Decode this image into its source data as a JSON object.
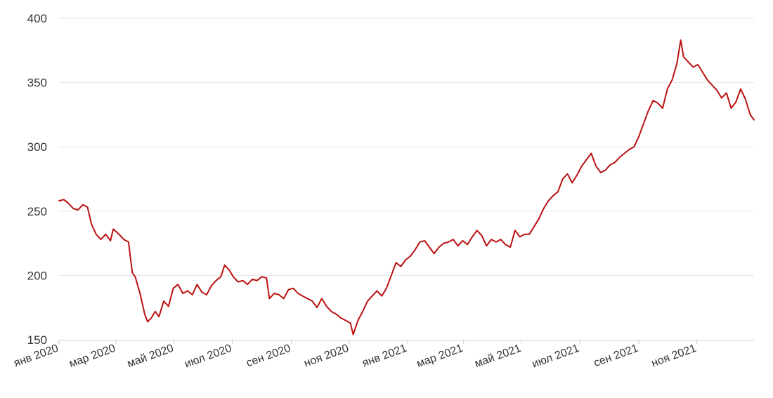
{
  "chart_data": {
    "type": "line",
    "title": "",
    "xlabel": "",
    "ylabel": "",
    "x_range": [
      "2020-01-01",
      "2021-12-31"
    ],
    "ylim": [
      150,
      400
    ],
    "yticks": [
      150,
      200,
      250,
      300,
      350,
      400
    ],
    "xticks": [
      {
        "date": "2020-01-01",
        "label": "янв 2020"
      },
      {
        "date": "2020-03-01",
        "label": "мар 2020"
      },
      {
        "date": "2020-05-01",
        "label": "май 2020"
      },
      {
        "date": "2020-07-01",
        "label": "июл 2020"
      },
      {
        "date": "2020-09-01",
        "label": "сен 2020"
      },
      {
        "date": "2020-11-01",
        "label": "ноя 2020"
      },
      {
        "date": "2021-01-01",
        "label": "янв 2021"
      },
      {
        "date": "2021-03-01",
        "label": "мар 2021"
      },
      {
        "date": "2021-05-01",
        "label": "май 2021"
      },
      {
        "date": "2021-07-01",
        "label": "июл 2021"
      },
      {
        "date": "2021-09-01",
        "label": "сен 2021"
      },
      {
        "date": "2021-11-01",
        "label": "ноя 2021"
      }
    ],
    "grid": "horizontal",
    "line_color": "#bb1111",
    "grid_color": "#e6e6e6",
    "series": [
      {
        "points": [
          [
            "2020-01-01",
            258
          ],
          [
            "2020-01-06",
            259
          ],
          [
            "2020-01-11",
            256
          ],
          [
            "2020-01-16",
            252
          ],
          [
            "2020-01-21",
            251
          ],
          [
            "2020-01-26",
            255
          ],
          [
            "2020-01-31",
            253
          ],
          [
            "2020-02-04",
            240
          ],
          [
            "2020-02-09",
            232
          ],
          [
            "2020-02-14",
            228
          ],
          [
            "2020-02-19",
            232
          ],
          [
            "2020-02-24",
            227
          ],
          [
            "2020-02-27",
            236
          ],
          [
            "2020-03-04",
            232
          ],
          [
            "2020-03-09",
            228
          ],
          [
            "2020-03-14",
            226
          ],
          [
            "2020-03-18",
            202
          ],
          [
            "2020-03-21",
            199
          ],
          [
            "2020-03-26",
            186
          ],
          [
            "2020-03-31",
            170
          ],
          [
            "2020-04-03",
            164
          ],
          [
            "2020-04-07",
            167
          ],
          [
            "2020-04-11",
            172
          ],
          [
            "2020-04-15",
            168
          ],
          [
            "2020-04-20",
            180
          ],
          [
            "2020-04-25",
            176
          ],
          [
            "2020-04-30",
            190
          ],
          [
            "2020-05-05",
            193
          ],
          [
            "2020-05-10",
            186
          ],
          [
            "2020-05-15",
            188
          ],
          [
            "2020-05-20",
            185
          ],
          [
            "2020-05-25",
            193
          ],
          [
            "2020-05-30",
            187
          ],
          [
            "2020-06-04",
            185
          ],
          [
            "2020-06-09",
            192
          ],
          [
            "2020-06-14",
            196
          ],
          [
            "2020-06-19",
            199
          ],
          [
            "2020-06-23",
            208
          ],
          [
            "2020-06-28",
            204
          ],
          [
            "2020-07-02",
            199
          ],
          [
            "2020-07-07",
            195
          ],
          [
            "2020-07-12",
            196
          ],
          [
            "2020-07-17",
            193
          ],
          [
            "2020-07-22",
            197
          ],
          [
            "2020-07-27",
            196
          ],
          [
            "2020-08-01",
            199
          ],
          [
            "2020-08-06",
            198
          ],
          [
            "2020-08-09",
            182
          ],
          [
            "2020-08-14",
            186
          ],
          [
            "2020-08-19",
            185
          ],
          [
            "2020-08-24",
            182
          ],
          [
            "2020-08-29",
            189
          ],
          [
            "2020-09-03",
            190
          ],
          [
            "2020-09-08",
            186
          ],
          [
            "2020-09-13",
            184
          ],
          [
            "2020-09-18",
            182
          ],
          [
            "2020-09-23",
            180
          ],
          [
            "2020-09-28",
            175
          ],
          [
            "2020-10-03",
            182
          ],
          [
            "2020-10-08",
            176
          ],
          [
            "2020-10-13",
            172
          ],
          [
            "2020-10-18",
            170
          ],
          [
            "2020-10-23",
            167
          ],
          [
            "2020-10-28",
            165
          ],
          [
            "2020-11-02",
            163
          ],
          [
            "2020-11-05",
            154
          ],
          [
            "2020-11-10",
            165
          ],
          [
            "2020-11-15",
            172
          ],
          [
            "2020-11-20",
            180
          ],
          [
            "2020-11-25",
            184
          ],
          [
            "2020-11-30",
            188
          ],
          [
            "2020-12-05",
            184
          ],
          [
            "2020-12-10",
            190
          ],
          [
            "2020-12-15",
            200
          ],
          [
            "2020-12-20",
            210
          ],
          [
            "2020-12-25",
            207
          ],
          [
            "2020-12-30",
            212
          ],
          [
            "2021-01-04",
            215
          ],
          [
            "2021-01-09",
            220
          ],
          [
            "2021-01-14",
            226
          ],
          [
            "2021-01-19",
            227
          ],
          [
            "2021-01-24",
            222
          ],
          [
            "2021-01-29",
            217
          ],
          [
            "2021-02-03",
            222
          ],
          [
            "2021-02-08",
            225
          ],
          [
            "2021-02-13",
            226
          ],
          [
            "2021-02-18",
            228
          ],
          [
            "2021-02-23",
            223
          ],
          [
            "2021-02-28",
            227
          ],
          [
            "2021-03-05",
            224
          ],
          [
            "2021-03-10",
            230
          ],
          [
            "2021-03-15",
            235
          ],
          [
            "2021-03-20",
            231
          ],
          [
            "2021-03-25",
            223
          ],
          [
            "2021-03-30",
            228
          ],
          [
            "2021-04-04",
            226
          ],
          [
            "2021-04-09",
            228
          ],
          [
            "2021-04-14",
            224
          ],
          [
            "2021-04-19",
            222
          ],
          [
            "2021-04-24",
            235
          ],
          [
            "2021-04-29",
            230
          ],
          [
            "2021-05-04",
            232
          ],
          [
            "2021-05-09",
            232
          ],
          [
            "2021-05-14",
            238
          ],
          [
            "2021-05-19",
            244
          ],
          [
            "2021-05-24",
            252
          ],
          [
            "2021-05-29",
            258
          ],
          [
            "2021-06-03",
            262
          ],
          [
            "2021-06-08",
            265
          ],
          [
            "2021-06-13",
            275
          ],
          [
            "2021-06-18",
            279
          ],
          [
            "2021-06-23",
            272
          ],
          [
            "2021-06-28",
            278
          ],
          [
            "2021-07-03",
            285
          ],
          [
            "2021-07-08",
            290
          ],
          [
            "2021-07-13",
            295
          ],
          [
            "2021-07-18",
            285
          ],
          [
            "2021-07-23",
            280
          ],
          [
            "2021-07-28",
            282
          ],
          [
            "2021-08-02",
            286
          ],
          [
            "2021-08-07",
            288
          ],
          [
            "2021-08-12",
            292
          ],
          [
            "2021-08-17",
            295
          ],
          [
            "2021-08-22",
            298
          ],
          [
            "2021-08-27",
            300
          ],
          [
            "2021-09-01",
            308
          ],
          [
            "2021-09-06",
            318
          ],
          [
            "2021-09-11",
            328
          ],
          [
            "2021-09-16",
            336
          ],
          [
            "2021-09-21",
            334
          ],
          [
            "2021-09-26",
            330
          ],
          [
            "2021-10-01",
            345
          ],
          [
            "2021-10-06",
            352
          ],
          [
            "2021-10-11",
            365
          ],
          [
            "2021-10-15",
            383
          ],
          [
            "2021-10-18",
            370
          ],
          [
            "2021-10-23",
            366
          ],
          [
            "2021-10-28",
            362
          ],
          [
            "2021-11-02",
            364
          ],
          [
            "2021-11-07",
            358
          ],
          [
            "2021-11-12",
            352
          ],
          [
            "2021-11-17",
            348
          ],
          [
            "2021-11-22",
            344
          ],
          [
            "2021-11-27",
            338
          ],
          [
            "2021-12-02",
            342
          ],
          [
            "2021-12-07",
            330
          ],
          [
            "2021-12-12",
            335
          ],
          [
            "2021-12-17",
            345
          ],
          [
            "2021-12-22",
            337
          ],
          [
            "2021-12-27",
            325
          ],
          [
            "2021-12-31",
            321
          ]
        ]
      }
    ]
  }
}
